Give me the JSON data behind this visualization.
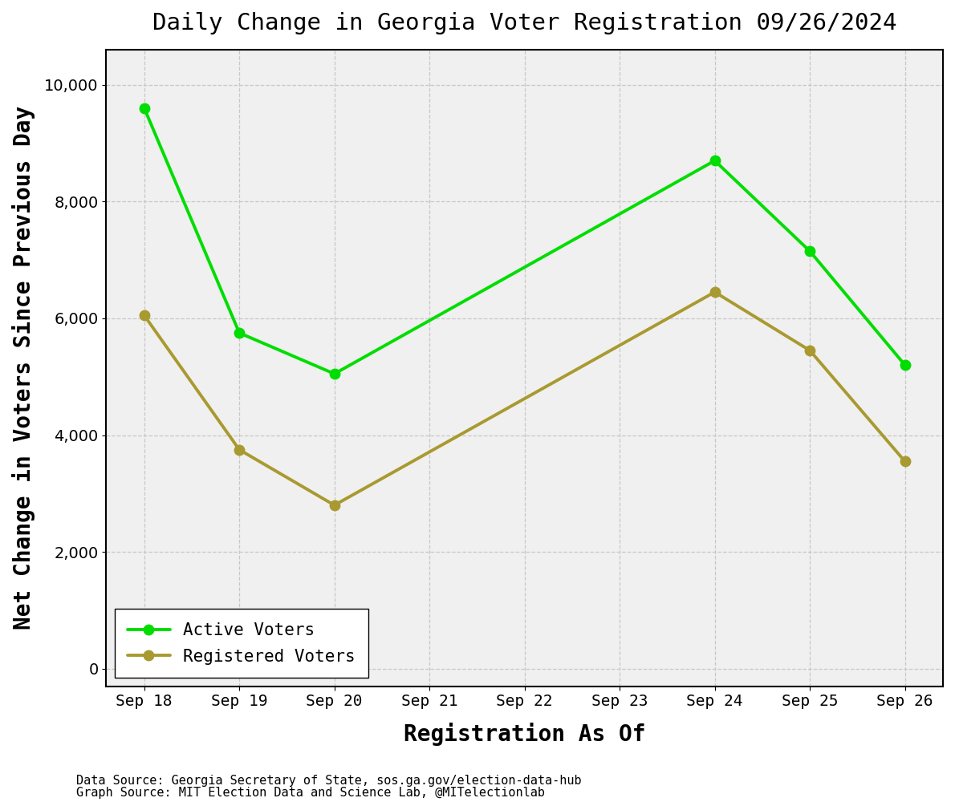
{
  "title": "Daily Change in Georgia Voter Registration 09/26/2024",
  "xlabel": "Registration As Of",
  "ylabel": "Net Change in Voters Since Previous Day",
  "dates": [
    "Sep 18",
    "Sep 19",
    "Sep 20",
    "Sep 21",
    "Sep 22",
    "Sep 23",
    "Sep 24",
    "Sep 25",
    "Sep 26"
  ],
  "active_voters": [
    9600,
    5750,
    5050,
    null,
    null,
    null,
    8700,
    7150,
    5200
  ],
  "registered_voters": [
    6050,
    3750,
    2800,
    null,
    null,
    null,
    6450,
    5450,
    3550
  ],
  "active_color": "#00dd00",
  "registered_color": "#a89a30",
  "line_width": 2.8,
  "marker_size": 9,
  "ylim": [
    -300,
    10600
  ],
  "yticks": [
    0,
    2000,
    4000,
    6000,
    8000,
    10000
  ],
  "background_color": "#ffffff",
  "plot_background": "#f0f0f0",
  "grid_color": "#c8c8c8",
  "title_fontsize": 21,
  "axis_label_fontsize": 20,
  "tick_fontsize": 14,
  "legend_fontsize": 15,
  "footnote1": "Data Source: Georgia Secretary of State, sos.ga.gov/election-data-hub",
  "footnote2": "Graph Source: MIT Election Data and Science Lab, @MITelectionlab",
  "footnote_fontsize": 11
}
